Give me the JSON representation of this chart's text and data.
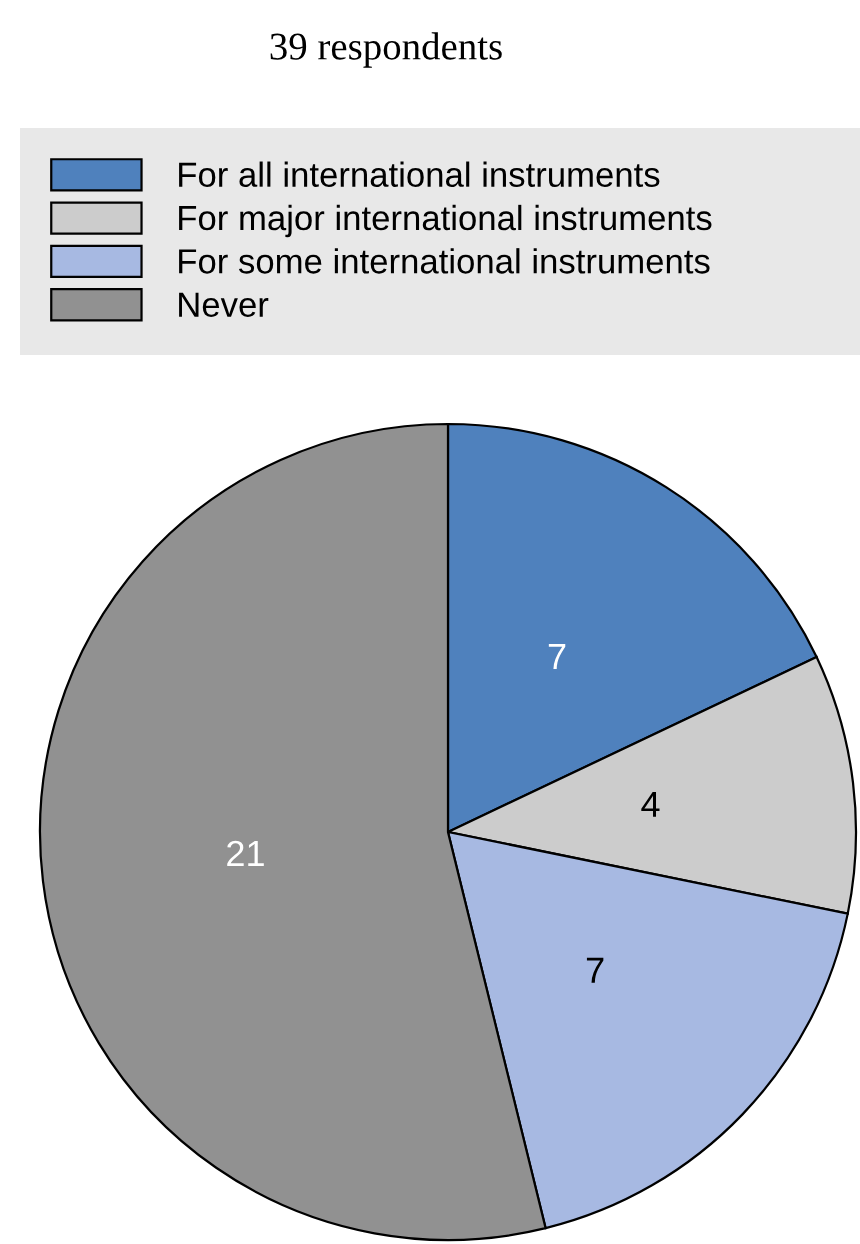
{
  "chart_data": {
    "type": "pie",
    "title": "39 respondents",
    "categories": [
      "For all international instruments",
      "For major international instruments",
      "For some international instruments",
      "Never"
    ],
    "values": [
      7,
      4,
      7,
      21
    ],
    "colors": [
      "#4f81bd",
      "#cccccc",
      "#a7b9e2",
      "#919191"
    ],
    "data_labels": true,
    "legend": "top"
  }
}
